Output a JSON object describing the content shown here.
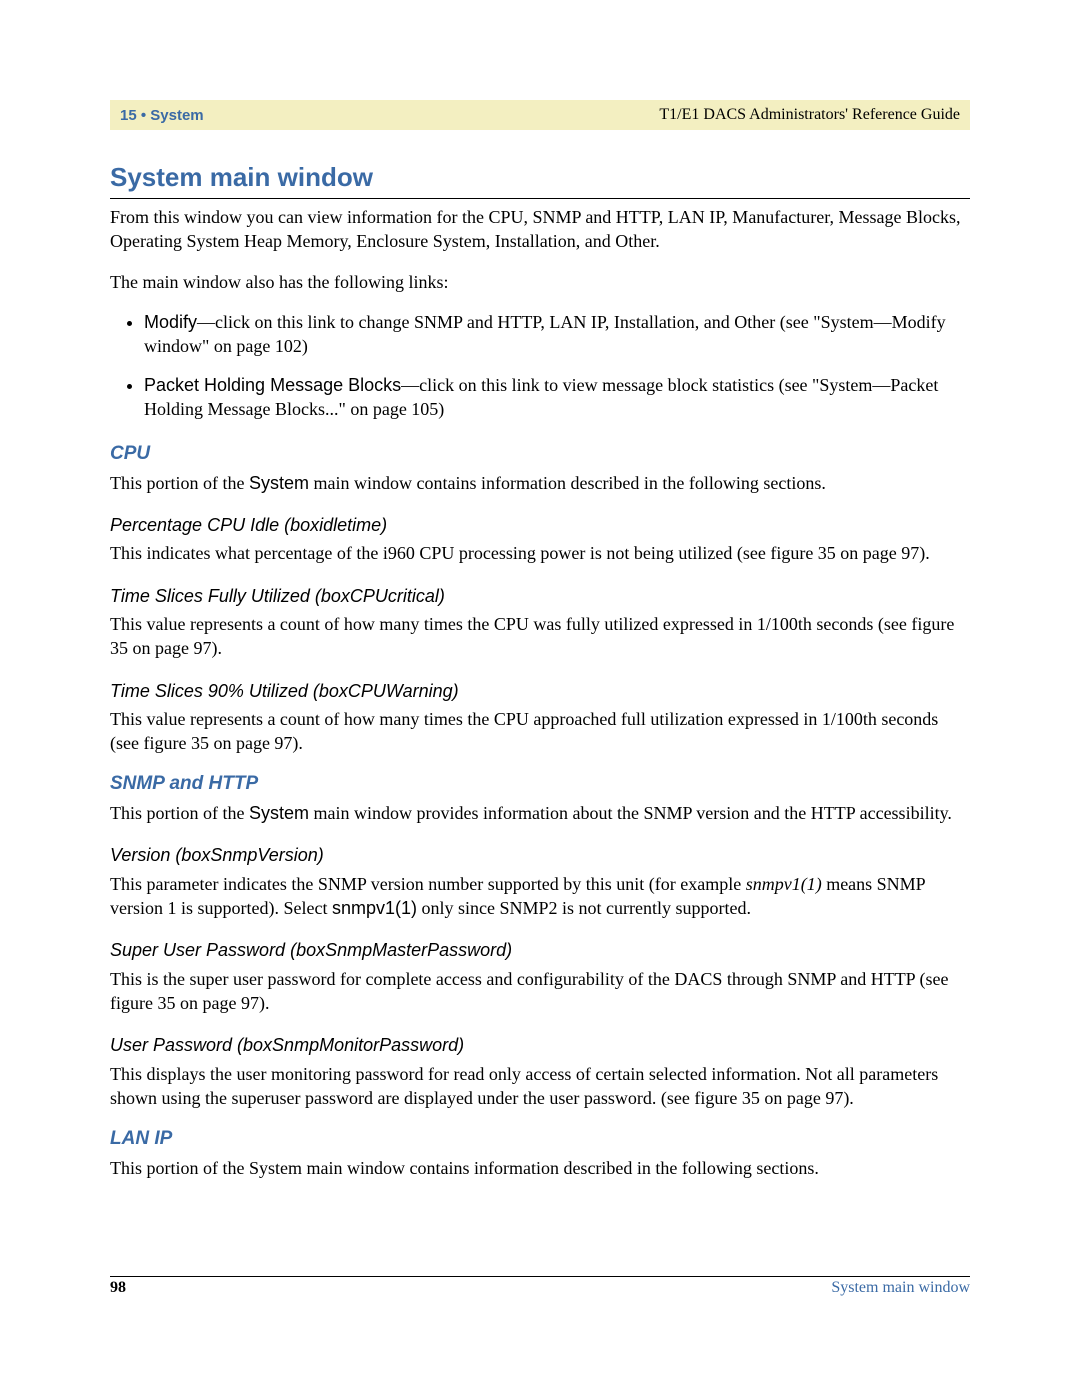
{
  "header": {
    "left": "15 • System",
    "right": "T1/E1 DACS Administrators' Reference Guide"
  },
  "title": "System main window",
  "intro_para": "From this window you can view information for the  CPU, SNMP and HTTP, LAN IP, Manufacturer, Message Blocks, Operating System Heap Memory, Enclosure System, Installation, and Other.",
  "links_intro": "The main window also has the following links:",
  "bullets": {
    "b1_label": "Modify",
    "b1_text": "—click on this link to change SNMP and HTTP, LAN IP, Installation, and Other (see \"System—Modify window\" on page 102)",
    "b2_label": "Packet Holding Message Blocks",
    "b2_text": "—click on this link to view message block statistics (see \"System—Packet Holding Message Blocks...\" on page 105)"
  },
  "cpu": {
    "heading": "CPU",
    "intro_pre": "This portion of the ",
    "intro_sys": "System",
    "intro_post": " main window contains information described in the following sections.",
    "s1_h": "Percentage CPU Idle (boxidletime)",
    "s1_p": "This indicates what percentage of the i960 CPU processing power is not being utilized (see figure 35 on page 97).",
    "s2_h": "Time Slices Fully Utilized (boxCPUcritical)",
    "s2_p": "This value represents a count of how many times the CPU was fully utilized expressed in 1/100th seconds (see figure 35 on page 97).",
    "s3_h": "Time Slices 90% Utilized (boxCPUWarning)",
    "s3_p": "This value represents a count of how many times the CPU approached full utilization expressed in 1/100th seconds (see figure 35 on page 97)."
  },
  "snmp": {
    "heading": "SNMP and HTTP",
    "intro_pre": "This portion of the ",
    "intro_sys": "System",
    "intro_post": " main window provides information about the SNMP version and the HTTP accessibility.",
    "s1_h": "Version (boxSnmpVersion)",
    "s1_p_pre": "This parameter indicates the SNMP version number supported by this unit (for example ",
    "s1_p_ital": "snmpv1(1)",
    "s1_p_mid": " means SNMP version 1 is supported). Select ",
    "s1_p_sans": "snmpv1(1)",
    "s1_p_post": " only since SNMP2 is not currently supported.",
    "s2_h": "Super User Password (boxSnmpMasterPassword)",
    "s2_p": "This is the super user password for complete access and configurability of the DACS through SNMP and HTTP (see figure 35 on page 97).",
    "s3_h": "User Password (boxSnmpMonitorPassword)",
    "s3_p": "This displays the user monitoring password for read only access of certain selected information.  Not all parameters shown using the superuser password are displayed under the user password. (see figure 35 on page 97)."
  },
  "lanip": {
    "heading": "LAN IP",
    "intro": "This portion of the System main window contains information described in the following sections."
  },
  "footer": {
    "page": "98",
    "label": "System main window"
  }
}
